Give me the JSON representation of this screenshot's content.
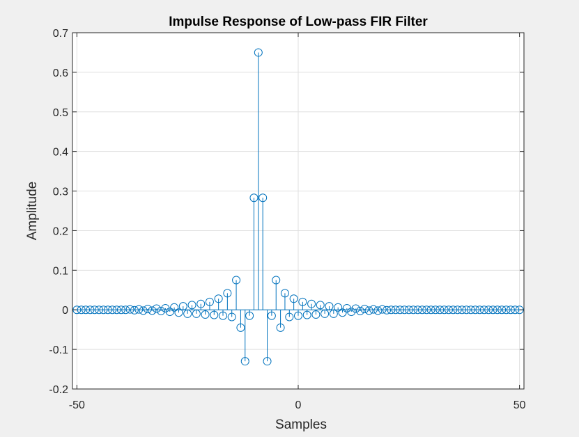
{
  "figure": {
    "background": "#f0f0f0",
    "axes_background": "#ffffff",
    "stem_color": "#0072bd"
  },
  "chart_data": {
    "type": "stem",
    "title": "Impulse Response of Low-pass FIR Filter",
    "xlabel": "Samples",
    "ylabel": "Amplitude",
    "xlim": [
      -51,
      51
    ],
    "ylim": [
      -0.2,
      0.7
    ],
    "xticks": [
      -50,
      0,
      50
    ],
    "xtick_labels": [
      "-50",
      "0",
      "50"
    ],
    "yticks": [
      -0.2,
      -0.1,
      0,
      0.1,
      0.2,
      0.3,
      0.4,
      0.5,
      0.6,
      0.7
    ],
    "ytick_labels": [
      "-0.2",
      "-0.1",
      "0",
      "0.1",
      "0.2",
      "0.3",
      "0.4",
      "0.5",
      "0.6",
      "0.7"
    ],
    "grid": true,
    "marker": "circle",
    "x": [
      -50,
      -49,
      -48,
      -47,
      -46,
      -45,
      -44,
      -43,
      -42,
      -41,
      -40,
      -39,
      -38,
      -37,
      -36,
      -35,
      -34,
      -33,
      -32,
      -31,
      -30,
      -29,
      -28,
      -27,
      -26,
      -25,
      -24,
      -23,
      -22,
      -21,
      -20,
      -19,
      -18,
      -17,
      -16,
      -15,
      -14,
      -13,
      -12,
      -11,
      -10,
      -9,
      -8,
      -7,
      -6,
      -5,
      -4,
      -3,
      -2,
      -1,
      0,
      1,
      2,
      3,
      4,
      5,
      6,
      7,
      8,
      9,
      10,
      11,
      12,
      13,
      14,
      15,
      16,
      17,
      18,
      19,
      20,
      21,
      22,
      23,
      24,
      25,
      26,
      27,
      28,
      29,
      30,
      31,
      32,
      33,
      34,
      35,
      36,
      37,
      38,
      39,
      40,
      41,
      42,
      43,
      44,
      45,
      46,
      47,
      48,
      49,
      50
    ],
    "y": [
      0,
      0,
      0,
      0,
      0,
      0,
      0,
      0,
      0,
      0,
      0,
      0,
      0.001,
      -0.001,
      0.001,
      -0.002,
      0.002,
      -0.002,
      0.003,
      -0.003,
      0.004,
      -0.005,
      0.006,
      -0.007,
      0.009,
      -0.01,
      0.012,
      -0.01,
      0.015,
      -0.012,
      0.02,
      -0.013,
      0.028,
      -0.015,
      0.042,
      -0.018,
      0.075,
      -0.045,
      -0.13,
      -0.015,
      0.283,
      0.65,
      0.283,
      -0.13,
      -0.015,
      0.075,
      -0.045,
      0.042,
      -0.018,
      0.028,
      -0.015,
      0.02,
      -0.013,
      0.015,
      -0.012,
      0.012,
      -0.01,
      0.009,
      -0.01,
      0.006,
      -0.007,
      0.004,
      -0.005,
      0.003,
      -0.003,
      0.002,
      -0.002,
      0.001,
      -0.002,
      0.001,
      -0.001,
      0,
      0,
      0,
      0,
      0,
      0,
      0,
      0,
      0,
      0,
      0,
      0,
      0,
      0,
      0,
      0,
      0,
      0,
      0,
      0,
      0,
      0,
      0,
      0,
      0,
      0,
      0,
      0,
      0,
      0
    ]
  }
}
